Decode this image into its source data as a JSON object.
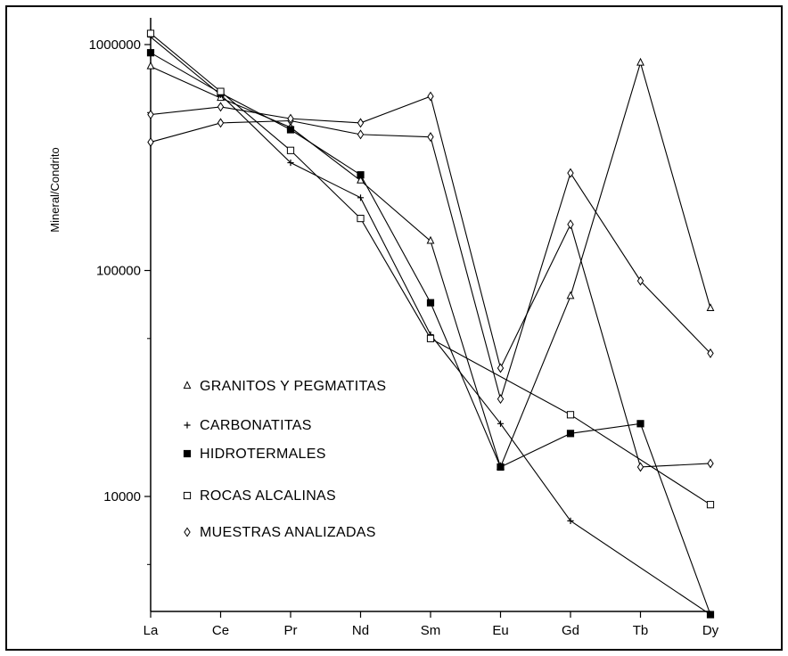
{
  "chart_data": {
    "type": "line",
    "title": "",
    "xlabel": "",
    "ylabel": "Mineral/Condrito",
    "yscale": "log",
    "ylim": [
      3000,
      1200000
    ],
    "y_ticks": [
      {
        "value": 10000,
        "label": "10000"
      },
      {
        "value": 100000,
        "label": "100000"
      },
      {
        "value": 1000000,
        "label": "1000000"
      }
    ],
    "categories": [
      "La",
      "Ce",
      "Pr",
      "Nd",
      "Sm",
      "Eu",
      "Gd",
      "Tb",
      "Dy"
    ],
    "grid": false,
    "legend_position": "center-left",
    "series": [
      {
        "name": "GRANITOS Y PEGMATITAS",
        "marker": "triangle",
        "values": [
          800000,
          580000,
          430000,
          250000,
          135000,
          13500,
          77000,
          830000,
          68000
        ]
      },
      {
        "name": "CARBONATITAS",
        "marker": "plus",
        "values": [
          1080000,
          600000,
          300000,
          210000,
          52000,
          21000,
          7800,
          null,
          3000
        ]
      },
      {
        "name": "HIDROTERMALES",
        "marker": "filled-square",
        "values": [
          920000,
          610000,
          420000,
          265000,
          72000,
          13500,
          19000,
          21000,
          3000
        ]
      },
      {
        "name": "ROCAS ALCALINAS",
        "marker": "open-square",
        "values": [
          1120000,
          620000,
          340000,
          170000,
          50000,
          null,
          23000,
          null,
          9200
        ]
      },
      {
        "name": "MUESTRAS ANALIZADAS",
        "marker": "diamond",
        "values": [
          370000,
          450000,
          460000,
          400000,
          390000,
          27000,
          270000,
          90000,
          43000
        ]
      },
      {
        "name": "",
        "marker": "diamond",
        "values": [
          490000,
          530000,
          470000,
          450000,
          590000,
          37000,
          160000,
          13500,
          14000
        ]
      }
    ]
  }
}
